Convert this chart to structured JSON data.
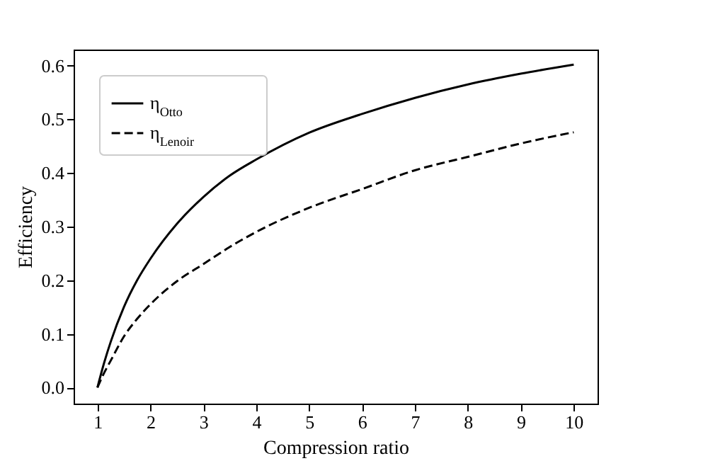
{
  "chart_data": {
    "type": "line",
    "xlabel": "Compression ratio",
    "ylabel": "Efficiency",
    "x": [
      1,
      1.1,
      1.25,
      1.5,
      1.75,
      2,
      2.5,
      3,
      3.5,
      4,
      5,
      6,
      7,
      8,
      9,
      10
    ],
    "series": [
      {
        "name": "η$_{Otto}$",
        "color": "#000000",
        "line_style": "solid",
        "values": [
          0,
          0.037,
          0.085,
          0.15,
          0.2,
          0.24,
          0.305,
          0.355,
          0.395,
          0.425,
          0.475,
          0.51,
          0.54,
          0.565,
          0.585,
          0.602
        ]
      },
      {
        "name": "η$_{Lenoir}$",
        "color": "#000000",
        "line_style": "dashed",
        "values": [
          0,
          0.022,
          0.05,
          0.095,
          0.128,
          0.155,
          0.198,
          0.23,
          0.262,
          0.29,
          0.335,
          0.37,
          0.405,
          0.43,
          0.455,
          0.476
        ]
      }
    ],
    "xlim": [
      0.55,
      10.45
    ],
    "ylim": [
      -0.03,
      0.63
    ],
    "xticks": [
      1,
      2,
      3,
      4,
      5,
      6,
      7,
      8,
      9,
      10
    ],
    "yticks": [
      {
        "value": 0,
        "label": "0.0"
      },
      {
        "value": 0.1,
        "label": "0.1"
      },
      {
        "value": 0.2,
        "label": "0.2"
      },
      {
        "value": 0.3,
        "label": "0.3"
      },
      {
        "value": 0.4,
        "label": "0.4"
      },
      {
        "value": 0.5,
        "label": "0.5"
      },
      {
        "value": 0.6,
        "label": "0.6"
      }
    ],
    "grid": false,
    "legend": "top left",
    "marker": "none"
  }
}
